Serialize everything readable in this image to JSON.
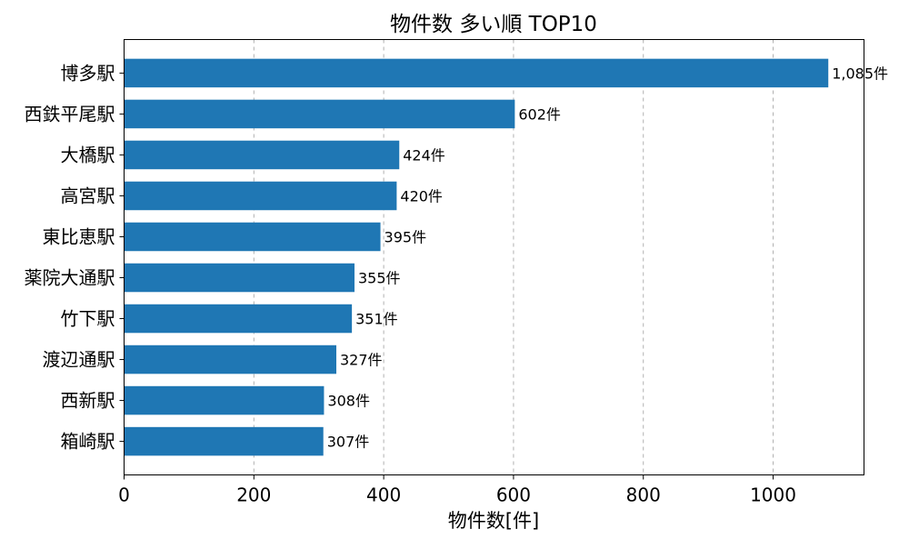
{
  "chart_data": {
    "type": "bar",
    "orientation": "horizontal",
    "title": "物件数 多い順 TOP10",
    "xlabel": "物件数[件]",
    "ylabel": "",
    "categories": [
      "博多駅",
      "西鉄平尾駅",
      "大橋駅",
      "高宮駅",
      "東比恵駅",
      "薬院大通駅",
      "竹下駅",
      "渡辺通駅",
      "西新駅",
      "箱崎駅"
    ],
    "values": [
      1085,
      602,
      424,
      420,
      395,
      355,
      351,
      327,
      308,
      307
    ],
    "data_labels": [
      "1,085件",
      "602件",
      "424件",
      "420件",
      "395件",
      "355件",
      "351件",
      "327件",
      "308件",
      "307件"
    ],
    "xlim": [
      0,
      1140
    ],
    "xticks": [
      0,
      200,
      400,
      600,
      800,
      1000
    ],
    "xtick_labels": [
      "0",
      "200",
      "400",
      "600",
      "800",
      "1000"
    ],
    "grid": "x-dashed",
    "legend": "none",
    "bar_color": "#1f77b4"
  }
}
